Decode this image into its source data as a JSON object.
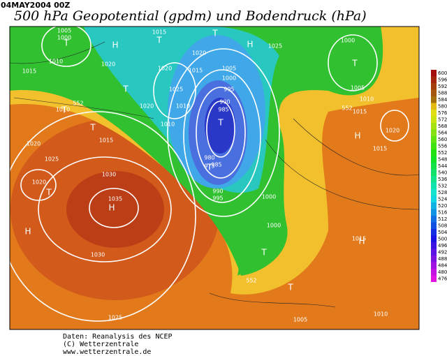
{
  "header": {
    "date": "04MAY2004 00Z",
    "title": "500 hPa Geopotential (gpdm) und Bodendruck (hPa)"
  },
  "legend": {
    "ticks": [
      476,
      480,
      484,
      488,
      492,
      496,
      500,
      504,
      508,
      512,
      516,
      520,
      524,
      528,
      532,
      536,
      540,
      544,
      548,
      552,
      556,
      560,
      564,
      568,
      572,
      576,
      580,
      584,
      588,
      592,
      596,
      600
    ]
  },
  "isobar_labels": [
    "1005",
    "1000",
    "1010",
    "1015",
    "1020",
    "1015",
    "1020",
    "1020",
    "1015",
    "1025",
    "1010",
    "1010",
    "1020",
    "1005",
    "1000",
    "995",
    "990",
    "985",
    "985",
    "980",
    "975",
    "1025",
    "1000",
    "1005",
    "1010",
    "1015",
    "1020",
    "1015",
    "1010",
    "1015",
    "1020",
    "1025",
    "1020",
    "1030",
    "1035",
    "1030",
    "1025",
    "1000",
    "1000",
    "990",
    "995",
    "1010",
    "1005",
    "1015",
    "552",
    "552",
    "552"
  ],
  "pressure_centers": [
    "T",
    "H",
    "T",
    "T",
    "T",
    "T",
    "T",
    "T",
    "T",
    "H",
    "T",
    "H",
    "T",
    "H",
    "H",
    "T",
    "T",
    "H"
  ],
  "footer": [
    "Daten: Reanalysis des NCEP",
    "(C) Wetterzentrale",
    "www.wetterzentrale.de"
  ]
}
